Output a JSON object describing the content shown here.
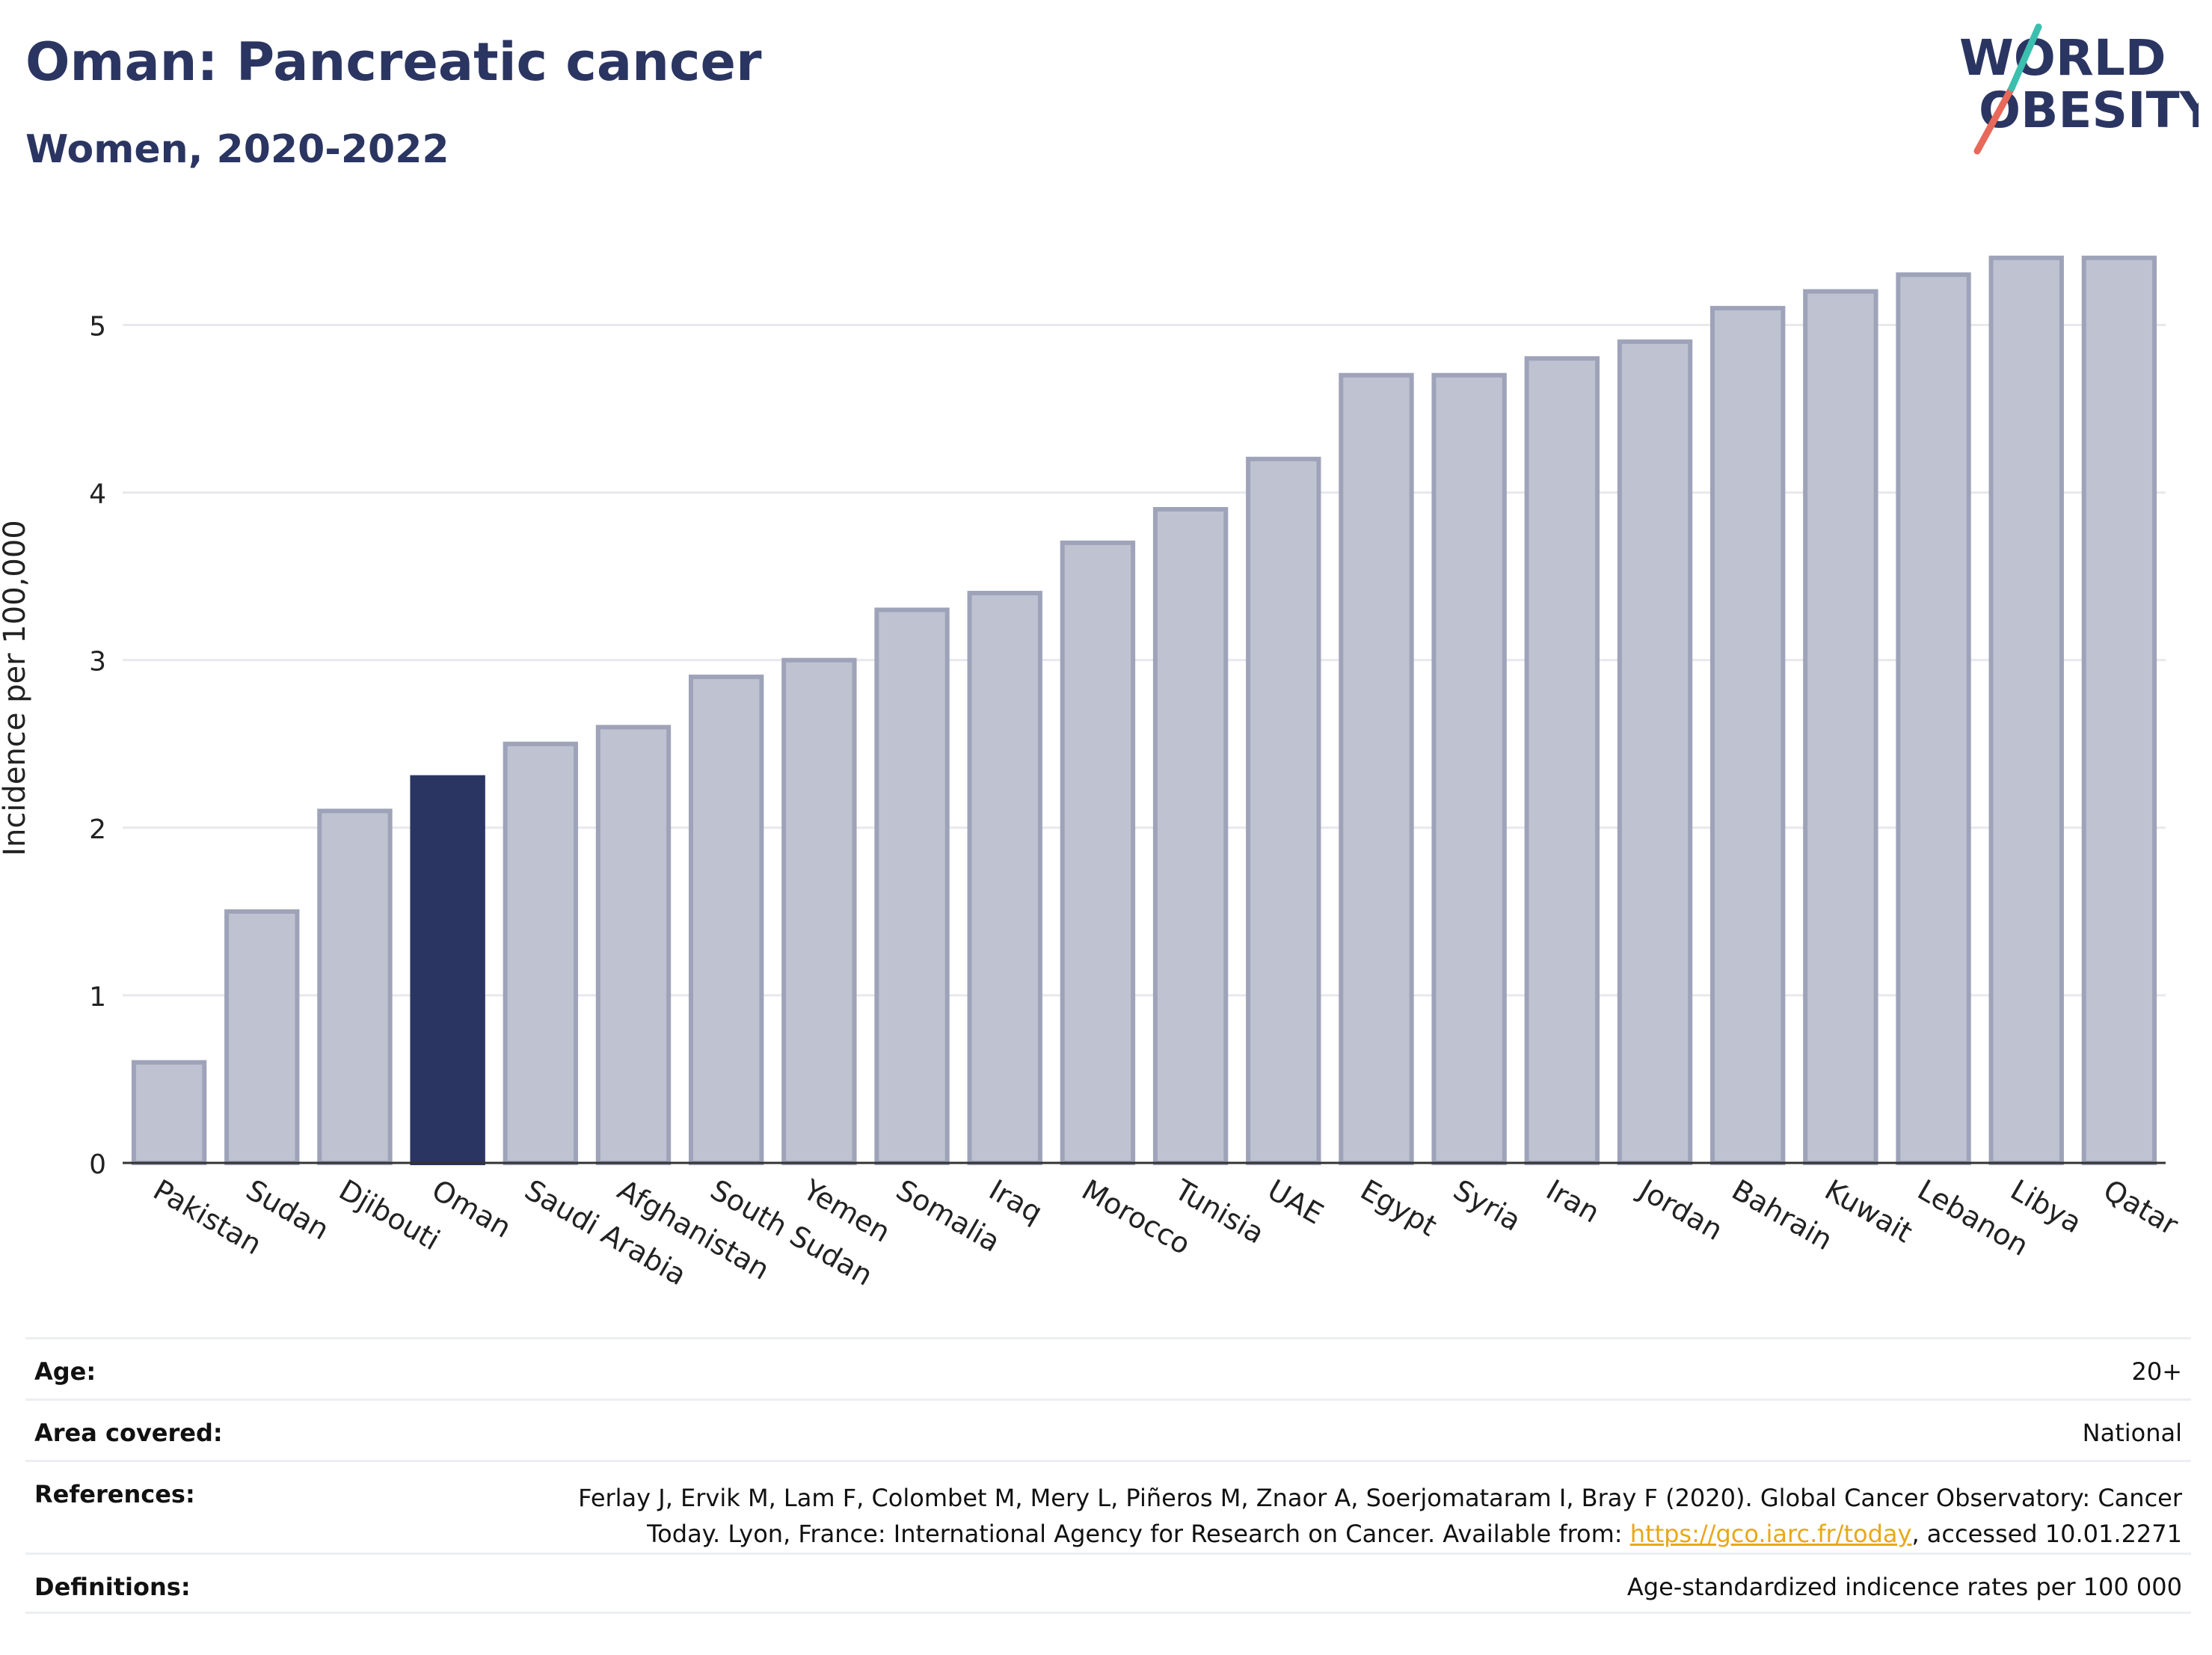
{
  "header": {
    "title": "Oman: Pancreatic cancer",
    "subtitle": "Women, 2020-2022"
  },
  "logo": {
    "line1": "WORLD",
    "line2": "OBESITY",
    "text_color": "#2b3562",
    "slash_colors": [
      "#e8685a",
      "#3bbfae"
    ]
  },
  "chart_data": {
    "type": "bar",
    "ylabel": "Incidence per 100,000",
    "xlabel": "",
    "ylim": [
      0,
      5.6
    ],
    "yticks": [
      0,
      1,
      2,
      3,
      4,
      5
    ],
    "grid": true,
    "highlight": "Oman",
    "colors": {
      "default": "#bfc2d0",
      "default_border": "#9ea3b9",
      "highlight": "#2b3562"
    },
    "categories": [
      "Pakistan",
      "Sudan",
      "Djibouti",
      "Oman",
      "Saudi Arabia",
      "Afghanistan",
      "South Sudan",
      "Yemen",
      "Somalia",
      "Iraq",
      "Morocco",
      "Tunisia",
      "UAE",
      "Egypt",
      "Syria",
      "Iran",
      "Jordan",
      "Bahrain",
      "Kuwait",
      "Lebanon",
      "Libya",
      "Qatar"
    ],
    "values": [
      0.6,
      1.5,
      2.1,
      2.3,
      2.5,
      2.6,
      2.9,
      3.0,
      3.3,
      3.4,
      3.7,
      3.9,
      4.2,
      4.7,
      4.7,
      4.8,
      4.9,
      5.1,
      5.2,
      5.3,
      5.4,
      5.4
    ]
  },
  "table": {
    "age_label": "Age:",
    "age_value": "20+",
    "area_label": "Area covered:",
    "area_value": "National",
    "references_label": "References:",
    "references_line1": "Ferlay J, Ervik M, Lam F, Colombet M, Mery L, Piñeros M, Znaor A, Soerjomataram I, Bray F (2020). Global Cancer Observatory: Cancer",
    "references_line2_pre": "Today. Lyon, France: International Agency for Research on Cancer. Available from: ",
    "references_link": "https://gco.iarc.fr/today",
    "references_line2_post": ", accessed 10.01.2271",
    "definitions_label": "Definitions:",
    "definitions_value": "Age-standardized indicence rates per 100 000"
  }
}
